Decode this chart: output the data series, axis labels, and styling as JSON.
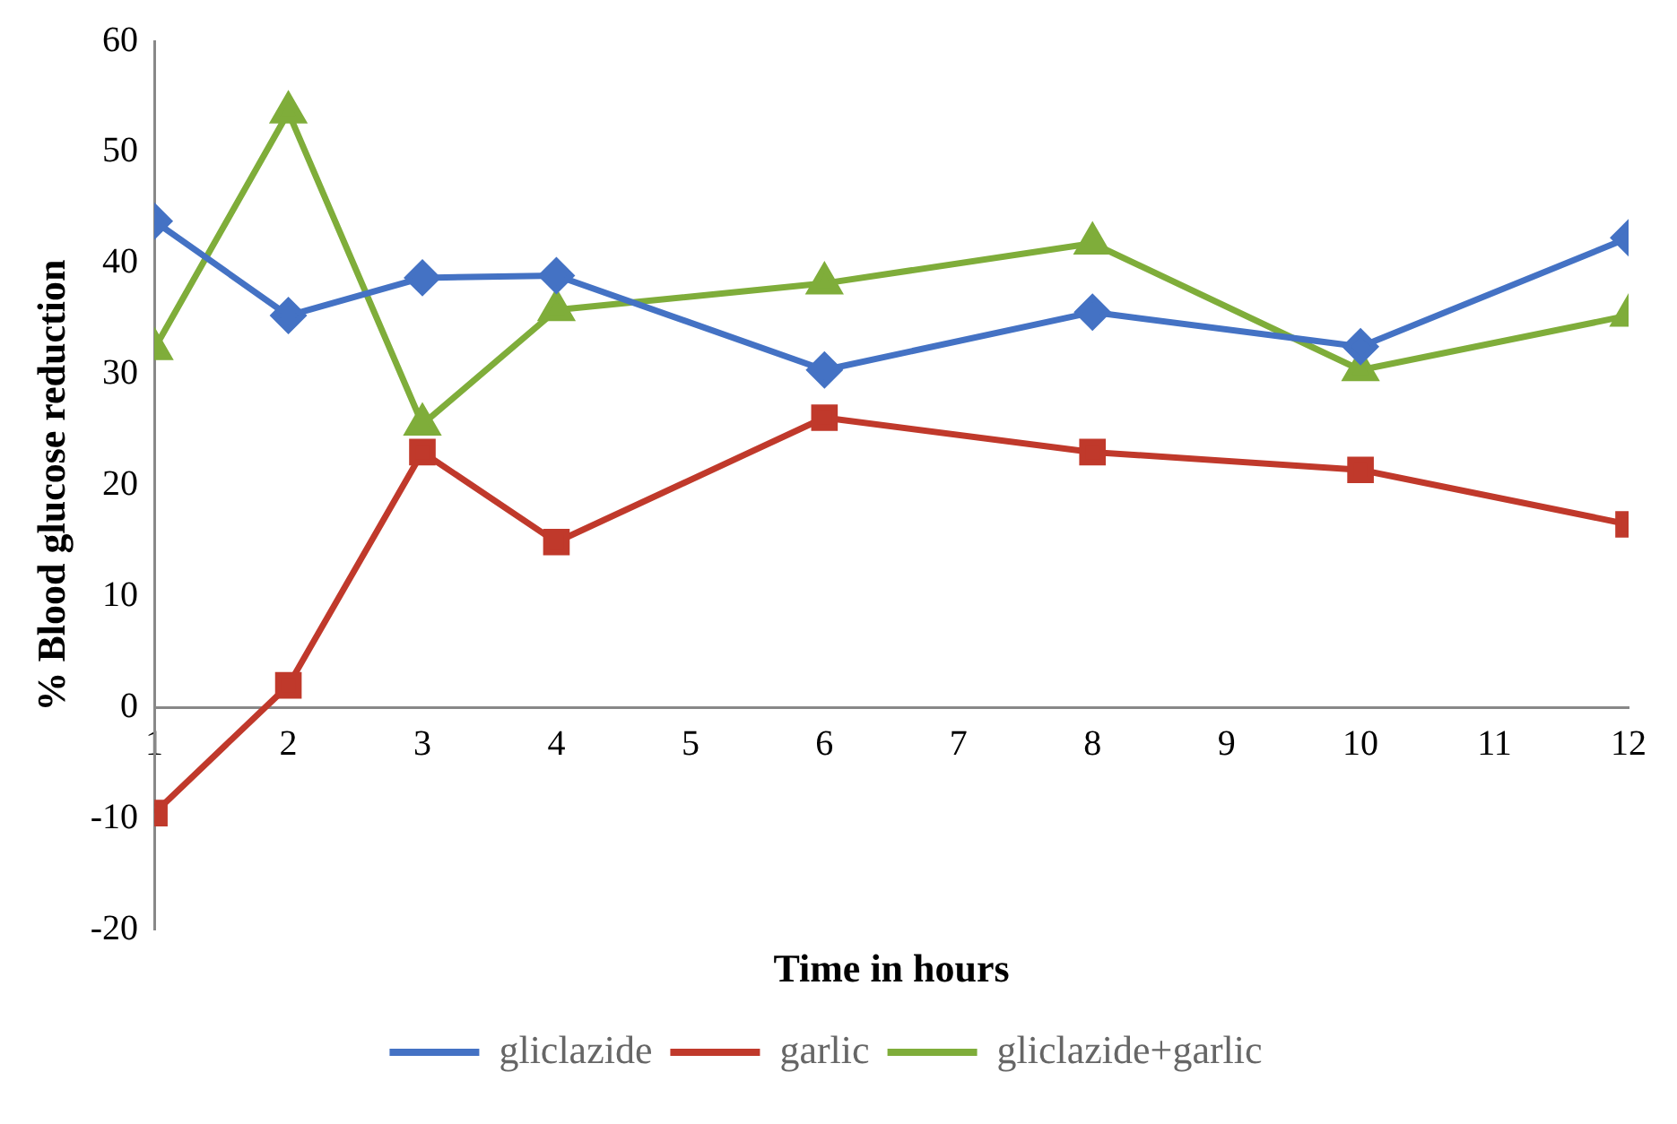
{
  "chart_data": {
    "type": "line",
    "xlabel": "Time in hours",
    "ylabel": "% Blood glucose reduction",
    "x": [
      1,
      2,
      3,
      4,
      6,
      8,
      10,
      12
    ],
    "xlim": [
      1,
      12
    ],
    "xticks": [
      1,
      2,
      3,
      4,
      5,
      6,
      7,
      8,
      9,
      10,
      11,
      12
    ],
    "ylim": [
      -20,
      60
    ],
    "yticks": [
      -20,
      -10,
      0,
      10,
      20,
      30,
      40,
      50,
      60
    ],
    "grid": false,
    "legend": "bottom",
    "series": [
      {
        "name": "gliclazide",
        "color": "#4472c4",
        "marker": "diamond",
        "values": [
          43.8,
          35.3,
          38.7,
          38.9,
          30.4,
          35.6,
          32.5,
          42.3
        ]
      },
      {
        "name": "garlic",
        "color": "#c0392b",
        "marker": "square",
        "values": [
          -9.5,
          2,
          23,
          14.9,
          26.1,
          23,
          21.4,
          16.5
        ]
      },
      {
        "name": "gliclazide+garlic",
        "color": "#7fad3a",
        "marker": "triangle",
        "values": [
          32.3,
          53.6,
          25.5,
          35.8,
          38.2,
          41.8,
          30.4,
          35.3
        ]
      }
    ]
  }
}
